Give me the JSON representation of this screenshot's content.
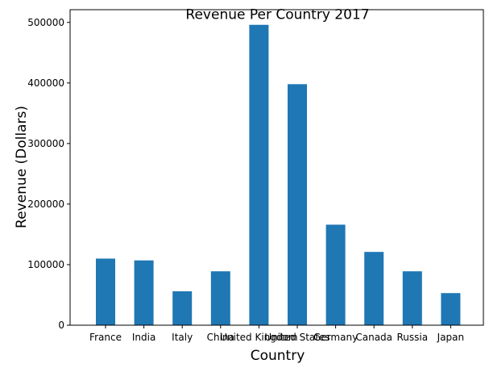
{
  "chart_data": {
    "type": "bar",
    "title": "Revenue Per Country 2017",
    "xlabel": "Country",
    "ylabel": "Revenue (Dollars)",
    "categories": [
      "France",
      "India",
      "Italy",
      "China",
      "United Kingdom",
      "United States",
      "Germany",
      "Canada",
      "Russia",
      "Japan"
    ],
    "values": [
      110000,
      107000,
      56000,
      89000,
      496000,
      398000,
      166000,
      121000,
      89000,
      53000
    ],
    "ylim": [
      0,
      521000
    ],
    "yticks": [
      0,
      100000,
      200000,
      300000,
      400000,
      500000
    ],
    "ytick_labels": [
      "0",
      "100000",
      "200000",
      "300000",
      "400000",
      "500000"
    ],
    "grid": false,
    "legend": "none",
    "bar_color": "#1f77b4"
  }
}
